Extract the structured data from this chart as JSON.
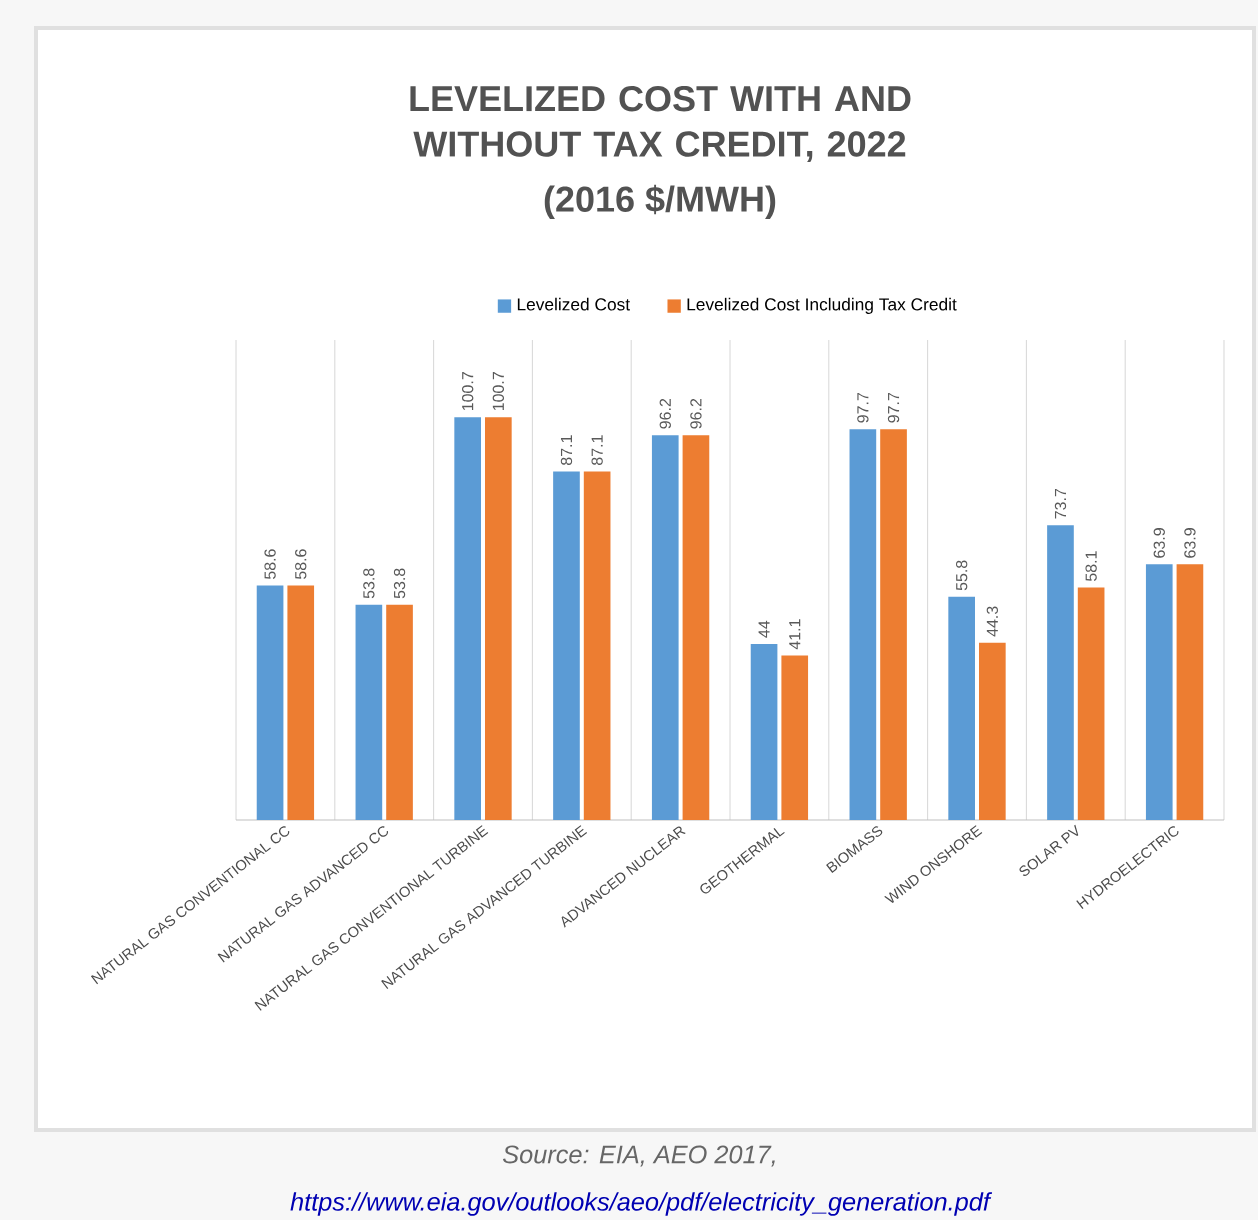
{
  "chart_data": {
    "type": "bar",
    "title": "LEVELIZED COST WITH AND WITHOUT TAX CREDIT, 2022",
    "subtitle": "(2016 $/MWH)",
    "categories": [
      "NATURAL GAS CONVENTIONAL CC",
      "NATURAL GAS ADVANCED CC",
      "NATURAL GAS CONVENTIONAL TURBINE",
      "NATURAL GAS ADVANCED TURBINE",
      "ADVANCED NUCLEAR",
      "GEOTHERMAL",
      "BIOMASS",
      "WIND ONSHORE",
      "SOLAR PV",
      "HYDROELECTRIC"
    ],
    "series": [
      {
        "name": "Levelized Cost",
        "color": "#5b9bd5",
        "values": [
          58.6,
          53.8,
          100.7,
          87.1,
          96.2,
          44,
          97.7,
          55.8,
          73.7,
          63.9
        ]
      },
      {
        "name": "Levelized Cost Including Tax Credit",
        "color": "#ed7d31",
        "values": [
          58.6,
          53.8,
          100.7,
          87.1,
          96.2,
          41.1,
          97.7,
          44.3,
          58.1,
          63.9
        ]
      }
    ],
    "ylim": [
      0,
      120
    ],
    "tick_labels": "x",
    "data_labels": true,
    "legend": "top",
    "grid": "x",
    "annotations": [
      "Source: EIA, AEO 2017,",
      "https://www.eia.gov/outlooks/aeo/pdf/electricity_generation.pdf"
    ]
  }
}
